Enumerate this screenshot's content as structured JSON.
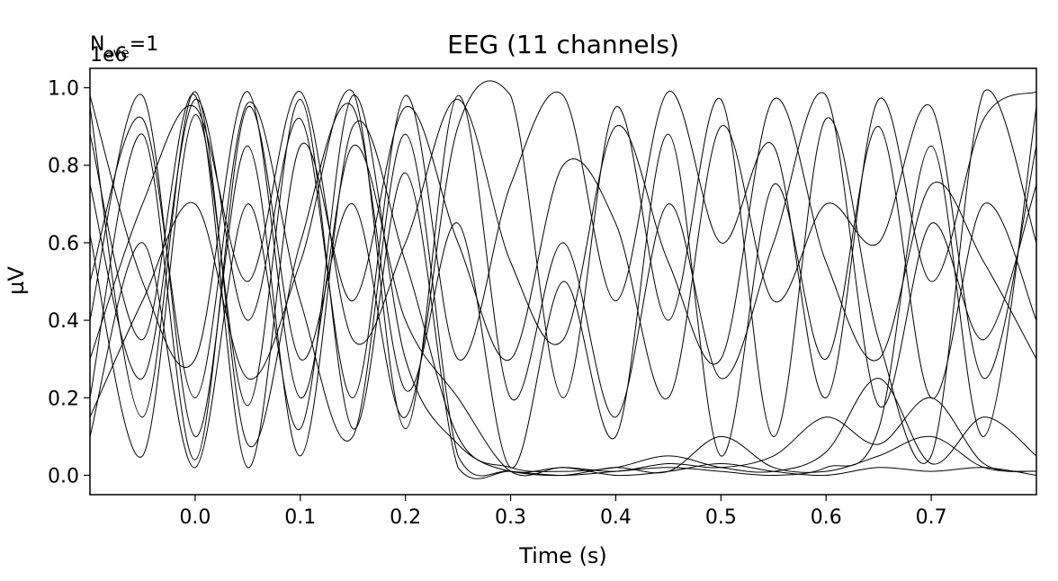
{
  "chart_data": {
    "type": "line",
    "title": "EEG (11 channels)",
    "annotation": {
      "prefix": "N",
      "subscript": "ave",
      "suffix": "=1"
    },
    "xlabel": "Time (s)",
    "ylabel": "µV",
    "y_offset_label": "1e6",
    "xlim": [
      -0.1,
      0.8
    ],
    "ylim": [
      -0.05,
      1.05
    ],
    "xticks": [
      0.0,
      0.1,
      0.2,
      0.3,
      0.4,
      0.5,
      0.6,
      0.7
    ],
    "xtick_labels": [
      "0.0",
      "0.1",
      "0.2",
      "0.3",
      "0.4",
      "0.5",
      "0.6",
      "0.7"
    ],
    "yticks": [
      0.0,
      0.2,
      0.4,
      0.6,
      0.8,
      1.0
    ],
    "ytick_labels": [
      "0.0",
      "0.2",
      "0.4",
      "0.6",
      "0.8",
      "1.0"
    ],
    "grid": false,
    "line_color": "#000000",
    "series": [
      {
        "x": [
          -0.1,
          -0.05,
          0.0,
          0.05,
          0.1,
          0.15,
          0.2,
          0.25,
          0.3,
          0.35,
          0.4,
          0.45,
          0.5,
          0.55,
          0.6,
          0.65,
          0.7,
          0.75,
          0.8
        ],
        "values": [
          0.62,
          0.05,
          0.93,
          0.18,
          0.97,
          0.12,
          0.78,
          0.02,
          0.01,
          0.0,
          0.01,
          0.02,
          0.01,
          0.0,
          0.02,
          0.12,
          0.85,
          0.1,
          0.95
        ]
      },
      {
        "x": [
          -0.1,
          -0.05,
          0.0,
          0.05,
          0.1,
          0.15,
          0.2,
          0.25,
          0.3,
          0.35,
          0.4,
          0.45,
          0.5,
          0.55,
          0.6,
          0.65,
          0.7,
          0.75,
          0.8
        ],
        "values": [
          0.2,
          0.88,
          0.04,
          0.95,
          0.3,
          0.7,
          0.15,
          0.9,
          0.98,
          0.2,
          0.95,
          0.4,
          0.97,
          0.1,
          0.92,
          0.35,
          0.05,
          0.99,
          0.6
        ]
      },
      {
        "x": [
          -0.1,
          -0.05,
          0.0,
          0.05,
          0.1,
          0.15,
          0.2,
          0.25,
          0.3,
          0.35,
          0.4,
          0.45,
          0.5,
          0.55,
          0.6,
          0.65,
          0.7,
          0.75,
          0.8
        ],
        "values": [
          0.95,
          0.15,
          0.99,
          0.08,
          0.6,
          0.95,
          0.22,
          0.65,
          0.02,
          0.5,
          0.1,
          0.88,
          0.05,
          0.75,
          0.3,
          0.9,
          0.2,
          0.7,
          0.4
        ]
      },
      {
        "x": [
          -0.1,
          -0.05,
          0.0,
          0.05,
          0.1,
          0.15,
          0.2,
          0.25,
          0.3,
          0.35,
          0.4,
          0.45,
          0.5,
          0.55,
          0.6,
          0.65,
          0.7,
          0.75,
          0.8
        ],
        "values": [
          0.4,
          0.98,
          0.1,
          0.85,
          0.05,
          0.9,
          0.55,
          0.1,
          0.02,
          0.01,
          0.02,
          0.05,
          0.02,
          0.01,
          0.06,
          0.25,
          0.03,
          0.15,
          0.05
        ]
      },
      {
        "x": [
          -0.1,
          -0.05,
          0.0,
          0.05,
          0.1,
          0.15,
          0.2,
          0.25,
          0.3,
          0.35,
          0.4,
          0.45,
          0.5,
          0.55,
          0.6,
          0.65,
          0.7,
          0.75,
          0.8
        ],
        "values": [
          0.75,
          0.25,
          0.97,
          0.4,
          0.92,
          0.2,
          0.98,
          0.3,
          0.75,
          0.98,
          0.45,
          0.99,
          0.6,
          0.85,
          0.2,
          0.97,
          0.5,
          0.92,
          0.99
        ]
      },
      {
        "x": [
          -0.1,
          -0.05,
          0.0,
          0.05,
          0.1,
          0.15,
          0.2,
          0.25,
          0.3,
          0.35,
          0.4,
          0.45,
          0.5,
          0.55,
          0.6,
          0.65,
          0.7,
          0.75,
          0.8
        ],
        "values": [
          0.1,
          0.6,
          0.02,
          0.7,
          0.12,
          0.98,
          0.3,
          0.08,
          0.01,
          0.02,
          0.01,
          0.03,
          0.02,
          0.05,
          0.15,
          0.08,
          0.2,
          0.03,
          0.01
        ]
      },
      {
        "x": [
          -0.1,
          -0.05,
          0.0,
          0.05,
          0.1,
          0.15,
          0.2,
          0.25,
          0.3,
          0.35,
          0.4,
          0.45,
          0.5,
          0.55,
          0.6,
          0.65,
          0.7,
          0.75,
          0.8
        ],
        "values": [
          0.88,
          0.35,
          0.98,
          0.02,
          0.85,
          0.45,
          0.95,
          0.6,
          0.3,
          0.8,
          0.65,
          0.2,
          0.9,
          0.45,
          0.7,
          0.6,
          0.95,
          0.25,
          0.85
        ]
      },
      {
        "x": [
          -0.1,
          -0.05,
          0.0,
          0.05,
          0.1,
          0.15,
          0.2,
          0.25,
          0.3,
          0.35,
          0.4,
          0.45,
          0.5,
          0.55,
          0.6,
          0.65,
          0.7,
          0.75,
          0.8
        ],
        "values": [
          0.5,
          0.92,
          0.2,
          0.96,
          0.45,
          0.1,
          0.88,
          0.05,
          0.01,
          0.0,
          0.02,
          0.01,
          0.1,
          0.02,
          0.01,
          0.05,
          0.1,
          0.02,
          0.01
        ]
      },
      {
        "x": [
          -0.1,
          -0.05,
          0.0,
          0.05,
          0.1,
          0.15,
          0.2,
          0.25,
          0.3,
          0.35,
          0.4,
          0.45,
          0.5,
          0.55,
          0.6,
          0.65,
          0.7,
          0.75,
          0.8
        ],
        "values": [
          0.3,
          0.7,
          0.95,
          0.5,
          0.99,
          0.35,
          0.6,
          0.97,
          0.55,
          0.35,
          0.9,
          0.55,
          0.3,
          0.97,
          0.55,
          0.3,
          0.75,
          0.55,
          0.3
        ]
      },
      {
        "x": [
          -0.1,
          -0.05,
          0.0,
          0.05,
          0.1,
          0.15,
          0.2,
          0.25,
          0.3,
          0.35,
          0.4,
          0.45,
          0.5,
          0.55,
          0.6,
          0.65,
          0.7,
          0.75,
          0.8
        ],
        "values": [
          0.98,
          0.5,
          0.3,
          0.99,
          0.2,
          0.85,
          0.4,
          0.2,
          0.01,
          0.02,
          0.0,
          0.01,
          0.03,
          0.01,
          0.0,
          0.02,
          0.01,
          0.02,
          0.0
        ]
      },
      {
        "x": [
          -0.1,
          -0.05,
          0.0,
          0.05,
          0.1,
          0.15,
          0.2,
          0.25,
          0.3,
          0.35,
          0.4,
          0.45,
          0.5,
          0.55,
          0.6,
          0.65,
          0.7,
          0.75,
          0.8
        ],
        "values": [
          0.15,
          0.45,
          0.7,
          0.25,
          0.55,
          0.99,
          0.12,
          0.98,
          0.2,
          0.6,
          0.15,
          0.7,
          0.25,
          0.6,
          0.98,
          0.18,
          0.65,
          0.35,
          0.75
        ]
      }
    ]
  }
}
